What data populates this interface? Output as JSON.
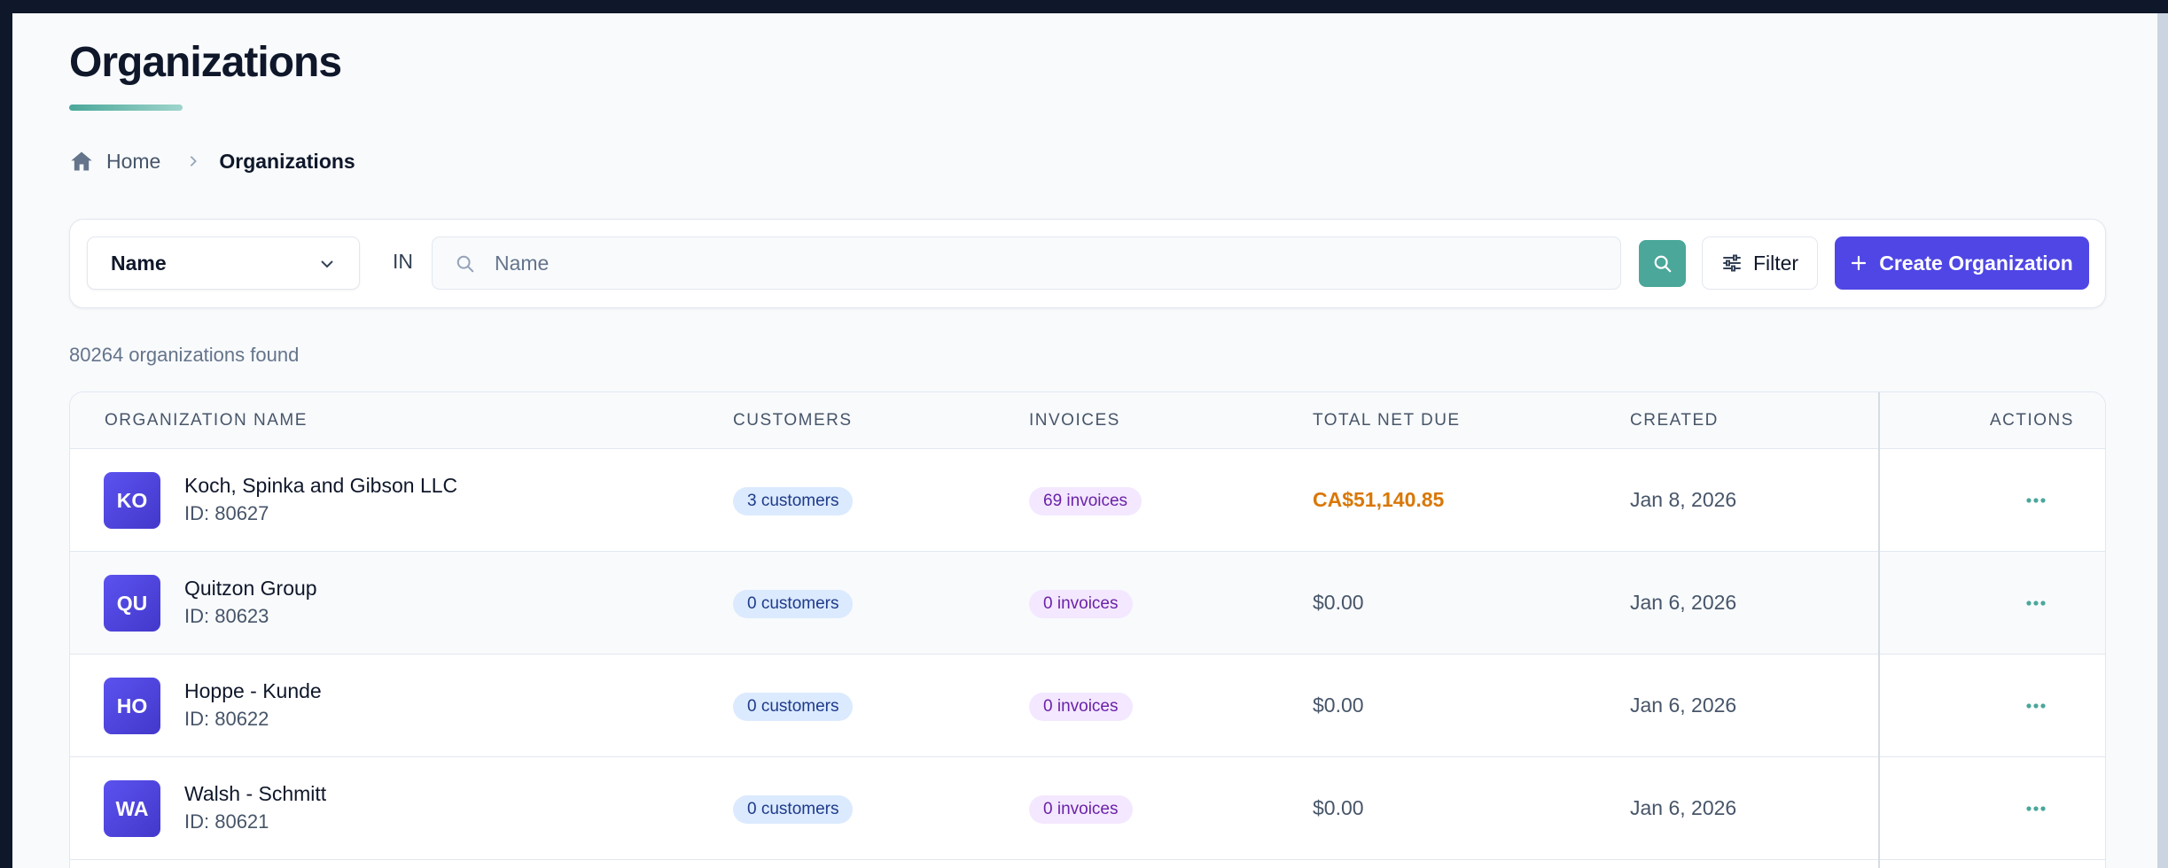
{
  "page": {
    "title": "Organizations"
  },
  "breadcrumb": {
    "home_label": "Home",
    "current_label": "Organizations"
  },
  "filters": {
    "field_select_value": "Name",
    "in_label": "IN",
    "search_placeholder": "Name",
    "search_value": "",
    "filter_label": "Filter",
    "create_label": "Create Organization"
  },
  "results": {
    "count_text": "80264 organizations found"
  },
  "table": {
    "headers": {
      "name": "ORGANIZATION NAME",
      "customers": "CUSTOMERS",
      "invoices": "INVOICES",
      "net_due": "TOTAL NET DUE",
      "created": "CREATED",
      "actions": "ACTIONS"
    },
    "rows": [
      {
        "initials": "KO",
        "name": "Koch, Spinka and Gibson LLC",
        "id": "ID: 80627",
        "customers": "3 customers",
        "invoices": "69 invoices",
        "net_due": "CA$51,140.85",
        "created": "Jan 8, 2026"
      },
      {
        "initials": "QU",
        "name": "Quitzon Group",
        "id": "ID: 80623",
        "customers": "0 customers",
        "invoices": "0 invoices",
        "net_due": "$0.00",
        "created": "Jan 6, 2026"
      },
      {
        "initials": "HO",
        "name": "Hoppe - Kunde",
        "id": "ID: 80622",
        "customers": "0 customers",
        "invoices": "0 invoices",
        "net_due": "$0.00",
        "created": "Jan 6, 2026"
      },
      {
        "initials": "WA",
        "name": "Walsh - Schmitt",
        "id": "ID: 80621",
        "customers": "0 customers",
        "invoices": "0 invoices",
        "net_due": "$0.00",
        "created": "Jan 6, 2026"
      }
    ]
  },
  "colors": {
    "primary": "#4f46e5",
    "teal": "#4aa79a",
    "due_amount": "#d97706",
    "customers_badge_bg": "#dbeafe",
    "invoices_badge_bg": "#f3e8ff"
  }
}
